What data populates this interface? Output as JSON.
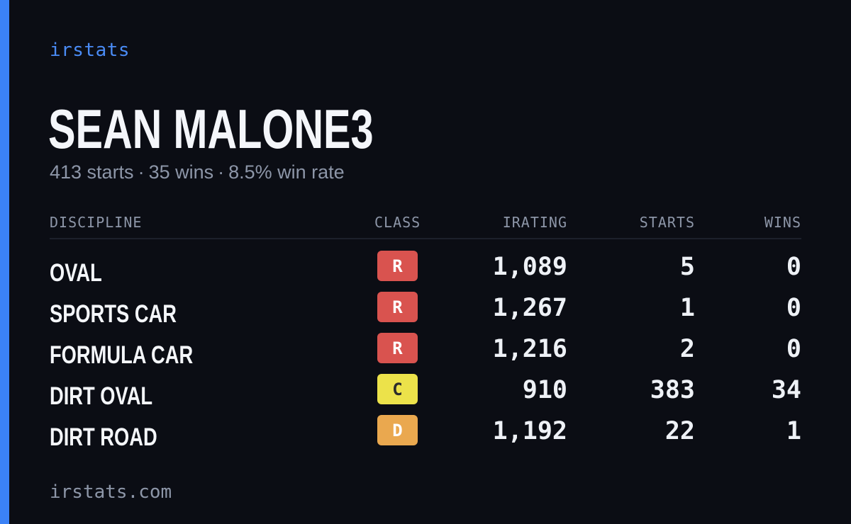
{
  "brand": "irstats",
  "player": {
    "name": "SEAN MALONE3",
    "starts": "413 starts",
    "wins": "35 wins",
    "win_rate": "8.5% win rate",
    "separator": "·"
  },
  "table": {
    "headers": {
      "discipline": "DISCIPLINE",
      "class": "CLASS",
      "irating": "IRATING",
      "starts": "STARTS",
      "wins": "WINS"
    },
    "rows": [
      {
        "discipline": "OVAL",
        "class": "R",
        "class_color": "#d9534f",
        "irating": "1,089",
        "starts": "5",
        "wins": "0"
      },
      {
        "discipline": "SPORTS CAR",
        "class": "R",
        "class_color": "#d9534f",
        "irating": "1,267",
        "starts": "1",
        "wins": "0"
      },
      {
        "discipline": "FORMULA CAR",
        "class": "R",
        "class_color": "#d9534f",
        "irating": "1,216",
        "starts": "2",
        "wins": "0"
      },
      {
        "discipline": "DIRT OVAL",
        "class": "C",
        "class_color": "#ece24a",
        "irating": "910",
        "starts": "383",
        "wins": "34"
      },
      {
        "discipline": "DIRT ROAD",
        "class": "D",
        "class_color": "#eaa84f",
        "irating": "1,192",
        "starts": "22",
        "wins": "1"
      }
    ]
  },
  "footer": "irstats.com",
  "colors": {
    "accent": "#3b82f6",
    "background": "#0b0d14"
  }
}
